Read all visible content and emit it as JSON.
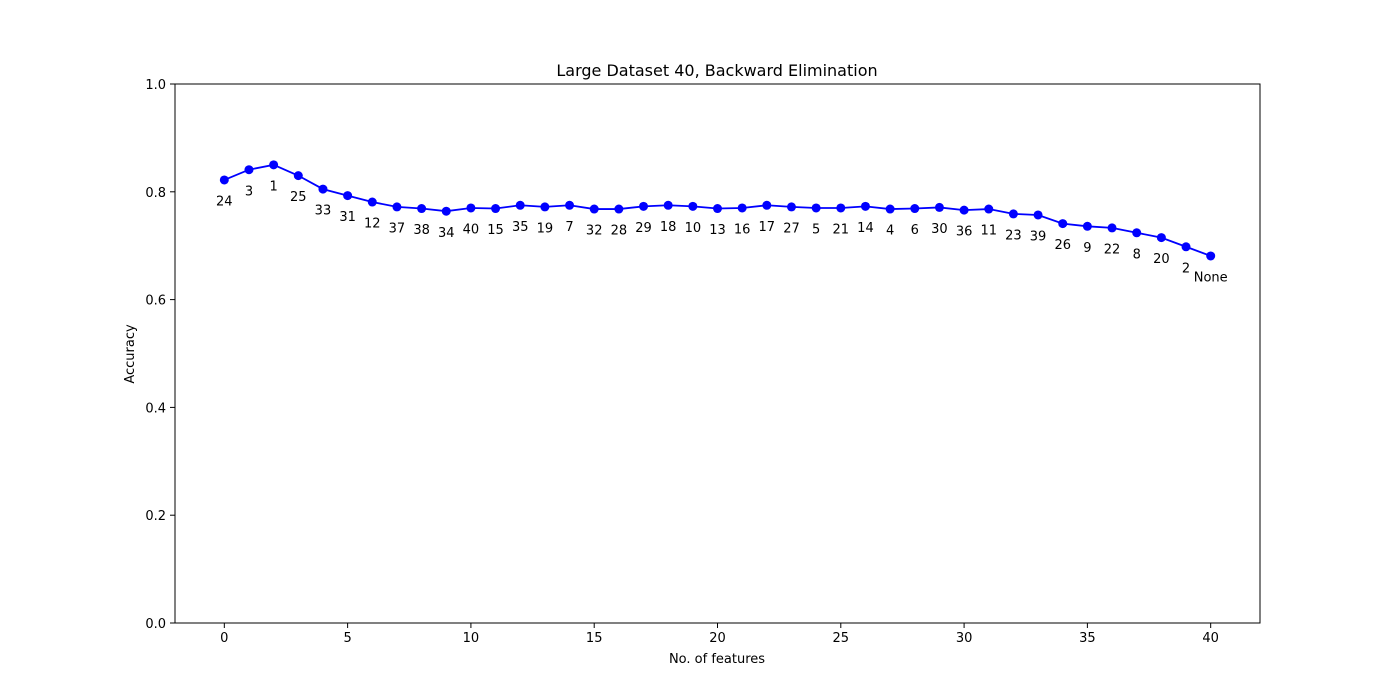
{
  "chart_data": {
    "type": "line",
    "title": "Large Dataset 40, Backward Elimination",
    "xlabel": "No. of features",
    "ylabel": "Accuracy",
    "xlim": [
      -2,
      42
    ],
    "ylim": [
      0,
      1.0
    ],
    "x_ticks": [
      0,
      5,
      10,
      15,
      20,
      25,
      30,
      35,
      40
    ],
    "x_tick_labels": [
      "0",
      "5",
      "10",
      "15",
      "20",
      "25",
      "30",
      "35",
      "40"
    ],
    "y_ticks": [
      0,
      0.2,
      0.4,
      0.6,
      0.8,
      1.0
    ],
    "y_tick_labels": [
      "0.0",
      "0.2",
      "0.4",
      "0.6",
      "0.8",
      "1.0"
    ],
    "grid": false,
    "legend": false,
    "line_color": "#0000ff",
    "series": [
      {
        "x": [
          0,
          1,
          2,
          3,
          4,
          5,
          6,
          7,
          8,
          9,
          10,
          11,
          12,
          13,
          14,
          15,
          16,
          17,
          18,
          19,
          20,
          21,
          22,
          23,
          24,
          25,
          26,
          27,
          28,
          29,
          30,
          31,
          32,
          33,
          34,
          35,
          36,
          37,
          38,
          39,
          40
        ],
        "values": [
          0.822,
          0.841,
          0.85,
          0.83,
          0.805,
          0.793,
          0.781,
          0.772,
          0.769,
          0.764,
          0.77,
          0.769,
          0.775,
          0.772,
          0.775,
          0.768,
          0.768,
          0.773,
          0.775,
          0.773,
          0.769,
          0.77,
          0.775,
          0.772,
          0.77,
          0.77,
          0.773,
          0.768,
          0.769,
          0.771,
          0.766,
          0.768,
          0.759,
          0.757,
          0.741,
          0.736,
          0.733,
          0.724,
          0.715,
          0.698,
          0.681
        ],
        "point_labels": [
          "24",
          "3",
          "1",
          "25",
          "33",
          "31",
          "12",
          "37",
          "38",
          "34",
          "40",
          "15",
          "35",
          "19",
          "7",
          "32",
          "28",
          "29",
          "18",
          "10",
          "13",
          "16",
          "17",
          "27",
          "5",
          "21",
          "14",
          "4",
          "6",
          "30",
          "36",
          "11",
          "23",
          "39",
          "26",
          "9",
          "22",
          "8",
          "20",
          "2",
          "None"
        ]
      }
    ]
  }
}
